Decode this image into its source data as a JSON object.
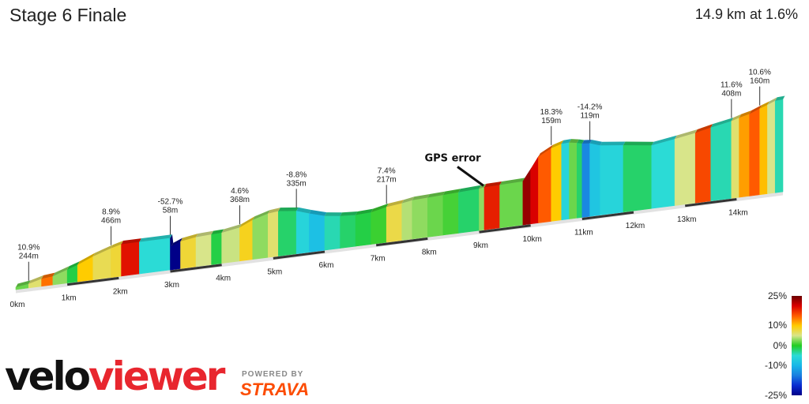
{
  "title": "Stage 6 Finale",
  "summary": "14.9 km at 1.6%",
  "brand": {
    "logo_dark": "velo",
    "logo_accent": "viewer",
    "powered_by": "POWERED BY",
    "partner": "STRAVA"
  },
  "chart_data": {
    "type": "area",
    "xlabel": "",
    "ylabel": "",
    "x_unit": "km",
    "x_ticks": [
      "0km",
      "1km",
      "2km",
      "3km",
      "4km",
      "5km",
      "6km",
      "7km",
      "8km",
      "9km",
      "10km",
      "11km",
      "12km",
      "13km",
      "14km"
    ],
    "distance_km": [
      0.0,
      0.25,
      0.5,
      0.72,
      1.0,
      1.2,
      1.5,
      1.85,
      2.05,
      2.4,
      3.0,
      3.02,
      3.2,
      3.5,
      3.8,
      4.0,
      4.35,
      4.6,
      4.9,
      5.1,
      5.45,
      5.7,
      6.0,
      6.3,
      6.6,
      6.9,
      7.2,
      7.5,
      7.7,
      8.0,
      8.3,
      8.6,
      9.0,
      9.1,
      9.4,
      9.85,
      10.0,
      10.15,
      10.4,
      10.6,
      10.75,
      10.9,
      11.0,
      11.15,
      11.35,
      11.8,
      12.35,
      12.8,
      13.2,
      13.5,
      13.9,
      14.05,
      14.25,
      14.45,
      14.6,
      14.75,
      14.9
    ],
    "elevation_m": [
      244,
      249,
      259,
      262,
      276,
      286,
      305,
      322,
      330,
      330,
      330,
      305,
      316,
      323,
      325,
      326,
      335,
      352,
      365,
      368,
      362,
      350,
      337,
      331,
      328,
      330,
      340,
      345,
      350,
      352,
      354,
      356,
      359,
      361,
      362,
      364,
      396,
      430,
      450,
      459,
      460,
      456,
      452,
      450,
      440,
      432,
      421,
      431,
      441,
      451,
      462,
      469,
      476,
      488,
      496,
      505,
      506
    ],
    "gradient_pct": [
      2.0,
      6.0,
      14.0,
      3.0,
      -1.0,
      10.0,
      7.0,
      8.0,
      19.0,
      -5.0,
      -52.7,
      -30.0,
      8.0,
      5.0,
      -1.0,
      4.6,
      8.9,
      3.0,
      6.0,
      -2.0,
      -6.0,
      -8.8,
      -4.0,
      -2.0,
      -1.0,
      0.7,
      7.4,
      4.0,
      3.0,
      2.0,
      1.0,
      -2.0,
      3.0,
      18.3,
      2.0,
      23.0,
      20.0,
      15.0,
      10.0,
      -6.0,
      2.0,
      -2.0,
      -14.2,
      -8.0,
      -6.0,
      -2.0,
      -5.0,
      5.0,
      16.0,
      -4.0,
      6.0,
      12.0,
      15.0,
      10.6,
      5.0,
      -4.0,
      2.0
    ],
    "annotations": [
      {
        "gradient": "10.9%",
        "length": "244m",
        "km": 0.25
      },
      {
        "gradient": "8.9%",
        "length": "466m",
        "km": 1.85
      },
      {
        "gradient": "-52.7%",
        "length": "58m",
        "km": 3.0
      },
      {
        "gradient": "4.6%",
        "length": "368m",
        "km": 4.35
      },
      {
        "gradient": "-8.8%",
        "length": "335m",
        "km": 5.45
      },
      {
        "gradient": "7.4%",
        "length": "217m",
        "km": 7.2
      },
      {
        "gradient": "18.3%",
        "length": "159m",
        "km": 10.4
      },
      {
        "gradient": "-14.2%",
        "length": "119m",
        "km": 11.15
      },
      {
        "gradient": "11.6%",
        "length": "408m",
        "km": 13.9
      },
      {
        "gradient": "10.6%",
        "length": "160m",
        "km": 14.45
      }
    ],
    "callout": {
      "text": "GPS error",
      "km": 9.1
    },
    "legend": {
      "position": "bottom-right",
      "labels": [
        "25%",
        "10%",
        "0%",
        "-10%",
        "-25%"
      ],
      "stops": [
        {
          "at": 0.0,
          "color": "#6b0000"
        },
        {
          "at": 0.1,
          "color": "#d90000"
        },
        {
          "at": 0.2,
          "color": "#ff5a00"
        },
        {
          "at": 0.3,
          "color": "#ffcc00"
        },
        {
          "at": 0.4,
          "color": "#d8e58a"
        },
        {
          "at": 0.5,
          "color": "#22cc22"
        },
        {
          "at": 0.6,
          "color": "#2bdbd6"
        },
        {
          "at": 0.7,
          "color": "#18b7e8"
        },
        {
          "at": 0.8,
          "color": "#1a7fe0"
        },
        {
          "at": 0.9,
          "color": "#0a2cd1"
        },
        {
          "at": 1.0,
          "color": "#000088"
        }
      ]
    }
  }
}
